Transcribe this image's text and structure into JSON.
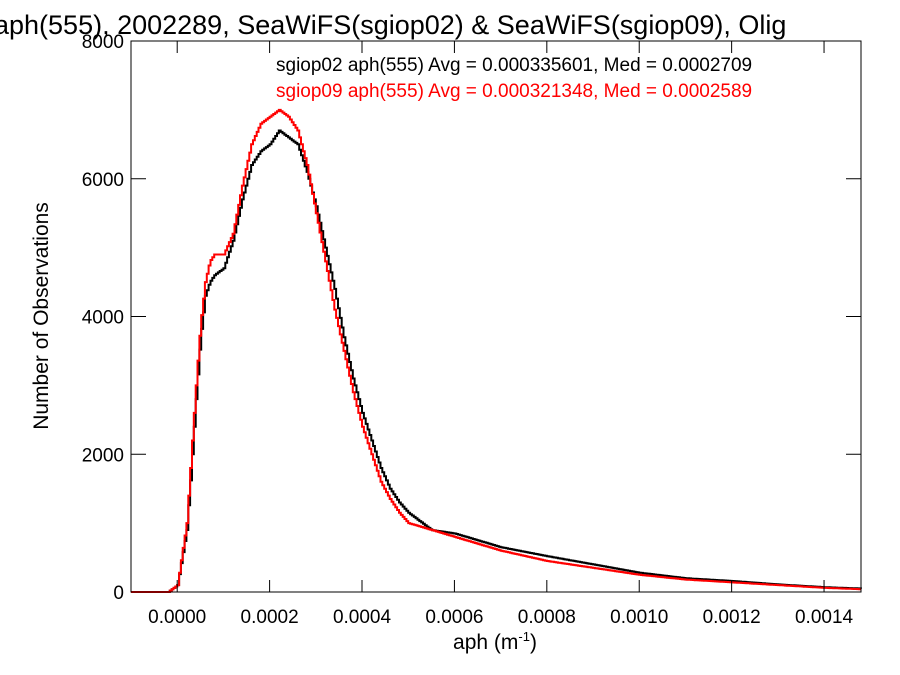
{
  "chart_data": {
    "type": "line",
    "title": "aph(555), 2002289, SeaWiFS(sgiop02) & SeaWiFS(sgiop09), Olig",
    "xlabel": "aph (m",
    "xlabel_sup": "-1",
    "xlabel_close": ")",
    "ylabel": "Number of Observations",
    "xlim": [
      -0.0001,
      0.00148
    ],
    "ylim": [
      0,
      8000
    ],
    "grid": false,
    "x_ticks": [
      {
        "v": 0.0,
        "label": "0.0000"
      },
      {
        "v": 0.0002,
        "label": "0.0002"
      },
      {
        "v": 0.0004,
        "label": "0.0004"
      },
      {
        "v": 0.0006,
        "label": "0.0006"
      },
      {
        "v": 0.0008,
        "label": "0.0008"
      },
      {
        "v": 0.001,
        "label": "0.0010"
      },
      {
        "v": 0.0012,
        "label": "0.0012"
      },
      {
        "v": 0.0014,
        "label": "0.0014"
      }
    ],
    "y_ticks": [
      {
        "v": 0,
        "label": "0"
      },
      {
        "v": 2000,
        "label": "2000"
      },
      {
        "v": 4000,
        "label": "4000"
      },
      {
        "v": 6000,
        "label": "6000"
      },
      {
        "v": 8000,
        "label": "8000"
      }
    ],
    "legend_placement": "top-right",
    "series": [
      {
        "legend": "sgiop02 aph(555) Avg = 0.000335601, Med = 0.0002709",
        "color": "#000000",
        "x": [
          -0.0001,
          -5e-05,
          -2e-05,
          0.0,
          2e-05,
          3e-05,
          4e-05,
          5e-05,
          6e-05,
          7e-05,
          8e-05,
          0.0001,
          0.00012,
          0.00014,
          0.00016,
          0.00018,
          0.0002,
          0.00022,
          0.00024,
          0.00026,
          0.00028,
          0.0003,
          0.00032,
          0.00034,
          0.00036,
          0.00038,
          0.0004,
          0.00042,
          0.00044,
          0.00046,
          0.00048,
          0.0005,
          0.00055,
          0.0006,
          0.00065,
          0.0007,
          0.0008,
          0.0009,
          0.001,
          0.0011,
          0.0012,
          0.0013,
          0.0014,
          0.00148
        ],
        "y": [
          0,
          0,
          0,
          100,
          900,
          1800,
          2800,
          3700,
          4300,
          4500,
          4600,
          4700,
          5100,
          5700,
          6200,
          6400,
          6500,
          6700,
          6600,
          6500,
          6100,
          5600,
          5000,
          4400,
          3700,
          3100,
          2600,
          2200,
          1800,
          1500,
          1300,
          1150,
          900,
          850,
          750,
          650,
          520,
          400,
          280,
          200,
          160,
          110,
          70,
          50
        ]
      },
      {
        "legend": "sgiop09 aph(555) Avg = 0.000321348, Med = 0.0002589",
        "color": "#ff0000",
        "x": [
          -0.0001,
          -5e-05,
          -2e-05,
          0.0,
          2e-05,
          3e-05,
          4e-05,
          5e-05,
          6e-05,
          7e-05,
          8e-05,
          0.0001,
          0.00012,
          0.00014,
          0.00016,
          0.00018,
          0.0002,
          0.00022,
          0.00024,
          0.00026,
          0.00028,
          0.0003,
          0.00032,
          0.00034,
          0.00036,
          0.00038,
          0.0004,
          0.00042,
          0.00044,
          0.00046,
          0.00048,
          0.0005,
          0.00055,
          0.0006,
          0.00065,
          0.0007,
          0.0008,
          0.0009,
          0.001,
          0.0011,
          0.0012,
          0.0013,
          0.0014,
          0.00148
        ],
        "y": [
          0,
          0,
          0,
          100,
          1000,
          2000,
          3000,
          3900,
          4500,
          4800,
          4900,
          4900,
          5200,
          5900,
          6500,
          6800,
          6900,
          7000,
          6900,
          6700,
          6200,
          5500,
          4800,
          4100,
          3500,
          2900,
          2400,
          2000,
          1600,
          1350,
          1150,
          1000,
          900,
          800,
          700,
          600,
          450,
          350,
          250,
          180,
          140,
          100,
          60,
          40
        ]
      }
    ]
  }
}
